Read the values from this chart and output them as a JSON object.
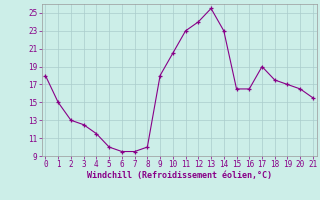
{
  "x": [
    0,
    1,
    2,
    3,
    4,
    5,
    6,
    7,
    8,
    9,
    10,
    11,
    12,
    13,
    14,
    15,
    16,
    17,
    18,
    19,
    20,
    21
  ],
  "y": [
    18.0,
    15.0,
    13.0,
    12.5,
    11.5,
    10.0,
    9.5,
    9.5,
    10.0,
    18.0,
    20.5,
    23.0,
    24.0,
    25.5,
    23.0,
    16.5,
    16.5,
    19.0,
    17.5,
    17.0,
    16.5,
    15.5
  ],
  "line_color": "#880088",
  "marker": "+",
  "marker_color": "#880088",
  "bg_color": "#cceee8",
  "grid_color": "#aacccc",
  "xlabel": "Windchill (Refroidissement éolien,°C)",
  "xlabel_color": "#880088",
  "tick_color": "#880088",
  "ylim": [
    9,
    26
  ],
  "xlim": [
    -0.3,
    21.3
  ],
  "yticks": [
    9,
    11,
    13,
    15,
    17,
    19,
    21,
    23,
    25
  ],
  "xticks": [
    0,
    1,
    2,
    3,
    4,
    5,
    6,
    7,
    8,
    9,
    10,
    11,
    12,
    13,
    14,
    15,
    16,
    17,
    18,
    19,
    20,
    21
  ]
}
